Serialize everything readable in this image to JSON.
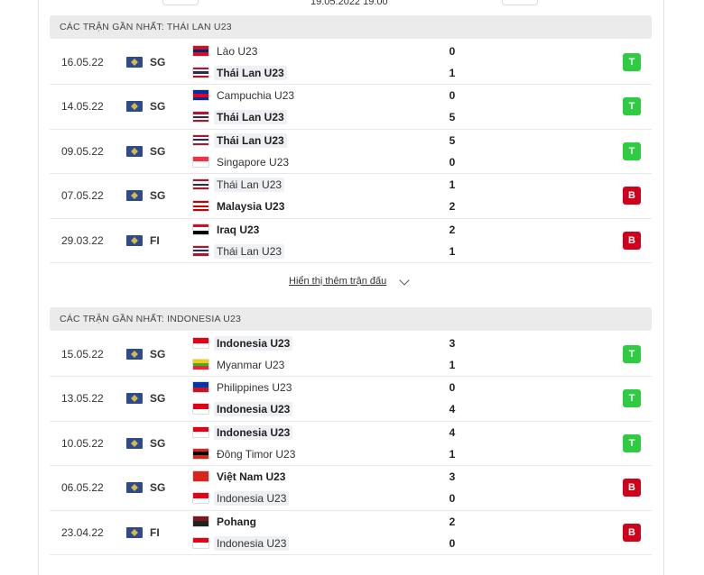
{
  "top": {
    "datetime": "19.05.2022 19:00"
  },
  "sections": [
    {
      "title": "CÁC TRẬN GẦN NHẤT: THÁI LAN U23",
      "more": "Hiển thị thêm trận đấu",
      "matches": [
        {
          "date": "16.05.22",
          "league": "SG",
          "result": "T",
          "teams": [
            {
              "name": "Lào U23",
              "score": 0,
              "flag": [
                "#ce1126",
                "#002868",
                "#ce1126"
              ]
            },
            {
              "name": "Thái Lan U23",
              "score": 1,
              "highlight": true,
              "flag": [
                "#a51931",
                "#f4f5f8",
                "#2d2a4a",
                "#f4f5f8",
                "#a51931"
              ]
            }
          ]
        },
        {
          "date": "14.05.22",
          "league": "SG",
          "result": "T",
          "teams": [
            {
              "name": "Campuchia U23",
              "score": 0,
              "flag": [
                "#032ea1",
                "#e00025",
                "#032ea1"
              ]
            },
            {
              "name": "Thái Lan U23",
              "score": 5,
              "highlight": true,
              "flag": [
                "#a51931",
                "#f4f5f8",
                "#2d2a4a",
                "#f4f5f8",
                "#a51931"
              ]
            }
          ]
        },
        {
          "date": "09.05.22",
          "league": "SG",
          "result": "T",
          "teams": [
            {
              "name": "Thái Lan U23",
              "score": 5,
              "highlight": true,
              "flag": [
                "#a51931",
                "#f4f5f8",
                "#2d2a4a",
                "#f4f5f8",
                "#a51931"
              ]
            },
            {
              "name": "Singapore U23",
              "score": 0,
              "flag": [
                "#ef3340",
                "#ffffff"
              ]
            }
          ]
        },
        {
          "date": "07.05.22",
          "league": "SG",
          "result": "B",
          "teams": [
            {
              "name": "Thái Lan U23",
              "score": 1,
              "highlight": true,
              "flag": [
                "#a51931",
                "#f4f5f8",
                "#2d2a4a",
                "#f4f5f8",
                "#a51931"
              ]
            },
            {
              "name": "Malaysia U23",
              "score": 2,
              "flag": [
                "#cc0001",
                "#ffffff",
                "#cc0001",
                "#ffffff",
                "#cc0001"
              ]
            }
          ]
        },
        {
          "date": "29.03.22",
          "league": "FI",
          "result": "B",
          "teams": [
            {
              "name": "Iraq U23",
              "score": 2,
              "flag": [
                "#ce1126",
                "#ffffff",
                "#000000"
              ]
            },
            {
              "name": "Thái Lan U23",
              "score": 1,
              "highlight": true,
              "flag": [
                "#a51931",
                "#f4f5f8",
                "#2d2a4a",
                "#f4f5f8",
                "#a51931"
              ]
            }
          ]
        }
      ]
    },
    {
      "title": "CÁC TRẬN GẦN NHẤT: INDONESIA U23",
      "matches": [
        {
          "date": "15.05.22",
          "league": "SG",
          "result": "T",
          "teams": [
            {
              "name": "Indonesia U23",
              "score": 3,
              "highlight": true,
              "flag": [
                "#e70011",
                "#ffffff"
              ]
            },
            {
              "name": "Myanmar U23",
              "score": 1,
              "flag": [
                "#fecb00",
                "#34b233",
                "#ea2839"
              ]
            }
          ]
        },
        {
          "date": "13.05.22",
          "league": "SG",
          "result": "T",
          "teams": [
            {
              "name": "Philippines U23",
              "score": 0,
              "flag": [
                "#0038a8",
                "#ce1126"
              ]
            },
            {
              "name": "Indonesia U23",
              "score": 4,
              "highlight": true,
              "flag": [
                "#e70011",
                "#ffffff"
              ]
            }
          ]
        },
        {
          "date": "10.05.22",
          "league": "SG",
          "result": "T",
          "teams": [
            {
              "name": "Indonesia U23",
              "score": 4,
              "highlight": true,
              "flag": [
                "#e70011",
                "#ffffff"
              ]
            },
            {
              "name": "Đông Timor U23",
              "score": 1,
              "flag": [
                "#dc241f",
                "#000000",
                "#dc241f"
              ]
            }
          ]
        },
        {
          "date": "06.05.22",
          "league": "SG",
          "result": "B",
          "teams": [
            {
              "name": "Việt Nam U23",
              "score": 3,
              "flag": [
                "#da251d"
              ]
            },
            {
              "name": "Indonesia U23",
              "score": 0,
              "highlight": true,
              "flag": [
                "#e70011",
                "#ffffff"
              ]
            }
          ]
        },
        {
          "date": "23.04.22",
          "league": "FI",
          "result": "B",
          "teams": [
            {
              "name": "Pohang",
              "score": 2,
              "flag": [
                "#7a1a1a",
                "#222222"
              ]
            },
            {
              "name": "Indonesia U23",
              "score": 0,
              "highlight": true,
              "flag": [
                "#e70011",
                "#ffffff"
              ]
            }
          ]
        }
      ]
    }
  ]
}
